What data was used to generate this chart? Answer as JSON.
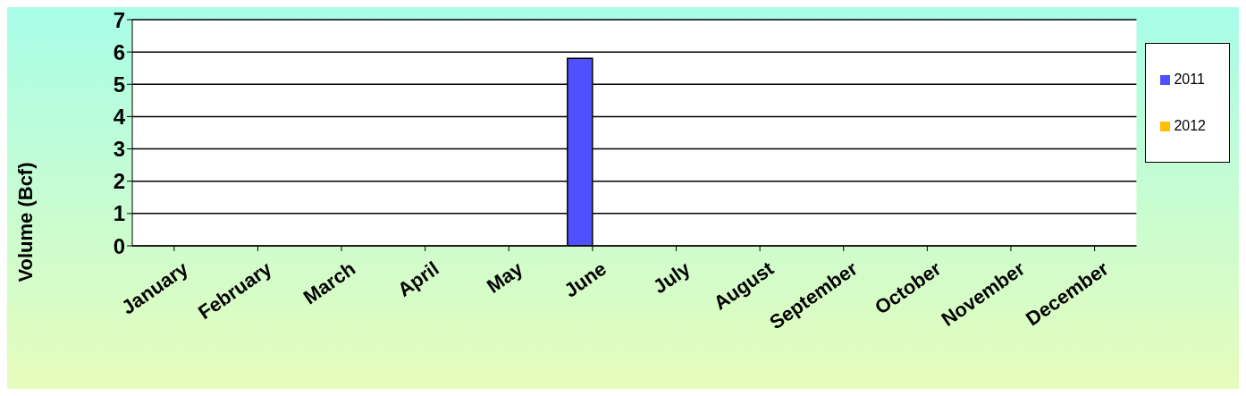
{
  "chart_data": {
    "type": "bar",
    "ylabel": "Volume (Bcf)",
    "categories": [
      "January",
      "February",
      "March",
      "April",
      "May",
      "June",
      "July",
      "August",
      "September",
      "October",
      "November",
      "December"
    ],
    "series": [
      {
        "name": "2011",
        "color": "#5050ff",
        "values": [
          null,
          null,
          null,
          null,
          null,
          5.8,
          null,
          null,
          null,
          null,
          null,
          null
        ]
      },
      {
        "name": "2012",
        "color": "#ffc000",
        "values": [
          null,
          null,
          null,
          null,
          null,
          null,
          null,
          null,
          null,
          null,
          null,
          null
        ]
      }
    ],
    "ylim": [
      0,
      7
    ],
    "yticks": [
      0,
      1,
      2,
      3,
      4,
      5,
      6,
      7
    ],
    "grid": "y",
    "legend": "right"
  }
}
